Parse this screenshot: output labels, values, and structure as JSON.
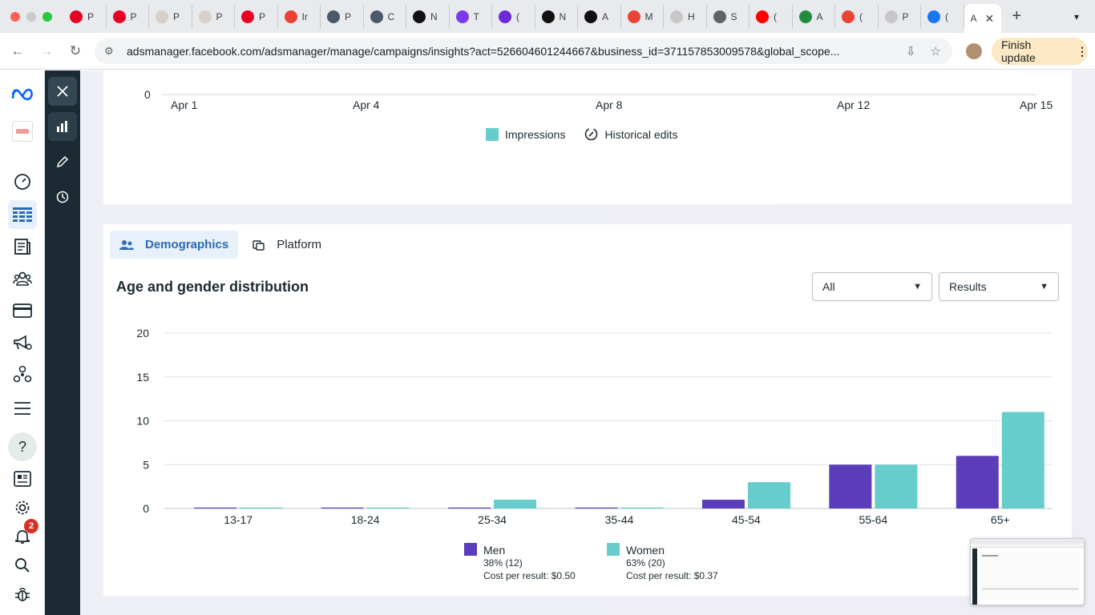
{
  "browser": {
    "traffic_colors": [
      "#ff5f57",
      "#c9c9c9",
      "#28c840"
    ],
    "tabs": [
      {
        "icon": "pinterest-icon",
        "label": "P",
        "color": "#e60023"
      },
      {
        "icon": "pinterest-icon",
        "label": "P",
        "color": "#e60023"
      },
      {
        "icon": "page-icon",
        "label": "P",
        "color": "#d8d0c8"
      },
      {
        "icon": "page-icon",
        "label": "P",
        "color": "#d8d0c8"
      },
      {
        "icon": "pinterest-icon",
        "label": "P",
        "color": "#e60023"
      },
      {
        "icon": "gmail-icon",
        "label": "Ir",
        "color": "#ea4335"
      },
      {
        "icon": "app-icon",
        "label": "P",
        "color": "#4a5a6a"
      },
      {
        "icon": "app-icon",
        "label": "C",
        "color": "#4a5a6a"
      },
      {
        "icon": "openai-icon",
        "label": "N",
        "color": "#111111"
      },
      {
        "icon": "app-icon",
        "label": "T",
        "color": "#7c3aed"
      },
      {
        "icon": "app-icon",
        "label": "(",
        "color": "#6d28d9"
      },
      {
        "icon": "openai-icon",
        "label": "N",
        "color": "#111111"
      },
      {
        "icon": "openai-icon",
        "label": "A",
        "color": "#111111"
      },
      {
        "icon": "gmail-icon",
        "label": "M",
        "color": "#ea4335"
      },
      {
        "icon": "page-icon",
        "label": "H",
        "color": "#c8c8c8"
      },
      {
        "icon": "globe-icon",
        "label": "S",
        "color": "#5f6368"
      },
      {
        "icon": "youtube-icon",
        "label": "(",
        "color": "#ff0000"
      },
      {
        "icon": "drive-icon",
        "label": "A",
        "color": "#1e8e3e"
      },
      {
        "icon": "gmail-icon",
        "label": "(",
        "color": "#ea4335"
      },
      {
        "icon": "page-icon",
        "label": "P",
        "color": "#c8c8c8"
      },
      {
        "icon": "facebook-icon",
        "label": "(",
        "color": "#1877f2"
      }
    ],
    "active_tab_label": "A",
    "url": "adsmanager.facebook.com/adsmanager/manage/campaigns/insights?act=526604601244667&business_id=371157853009578&global_scope...",
    "finish_update": "Finish update"
  },
  "leftnav": {
    "items": [
      "meta-logo-icon",
      "account-avatar-icon",
      "dashboard-gauge-icon",
      "campaigns-table-icon",
      "pages-icon",
      "audiences-icon",
      "billing-card-icon",
      "ads-megaphone-icon",
      "events-manager-icon",
      "all-tools-menu-icon",
      "help-icon",
      "news-icon",
      "settings-gear-icon",
      "notifications-bell-icon",
      "search-icon",
      "bug-report-icon"
    ],
    "notifications_count": "2",
    "help_label": "?"
  },
  "sidetool": {
    "items": [
      "close-icon",
      "insights-bar-chart-icon",
      "edit-pencil-icon",
      "history-clock-icon"
    ]
  },
  "impressions_chart": {
    "y_zero": "0",
    "x_ticks": [
      "Apr 1",
      "Apr 4",
      "Apr 8",
      "Apr 12",
      "Apr 15"
    ],
    "legend_impressions": "Impressions",
    "legend_history": "Historical edits",
    "impressions_color": "#66cccc"
  },
  "demographics": {
    "tab_demographics": "Demographics",
    "tab_platform": "Platform",
    "title": "Age and gender distribution",
    "filter_all": "All",
    "filter_results": "Results"
  },
  "chart_data": {
    "type": "bar",
    "categories": [
      "13-17",
      "18-24",
      "25-34",
      "35-44",
      "45-54",
      "55-64",
      "65+"
    ],
    "series": [
      {
        "name": "Men",
        "values": [
          0,
          0,
          0,
          0,
          1,
          5,
          6
        ],
        "color": "#5b3dbc"
      },
      {
        "name": "Women",
        "values": [
          0,
          0,
          1,
          0,
          3,
          5,
          11
        ],
        "color": "#66cccc"
      }
    ],
    "yticks": [
      "0",
      "5",
      "10",
      "15",
      "20"
    ],
    "ylim": [
      0,
      20
    ],
    "grid": true,
    "legend_placement": "bottom"
  },
  "legend": {
    "men": {
      "label": "Men",
      "share": "38% (12)",
      "cost": "Cost per result: $0.50"
    },
    "women": {
      "label": "Women",
      "share": "63% (20)",
      "cost": "Cost per result: $0.37"
    }
  }
}
